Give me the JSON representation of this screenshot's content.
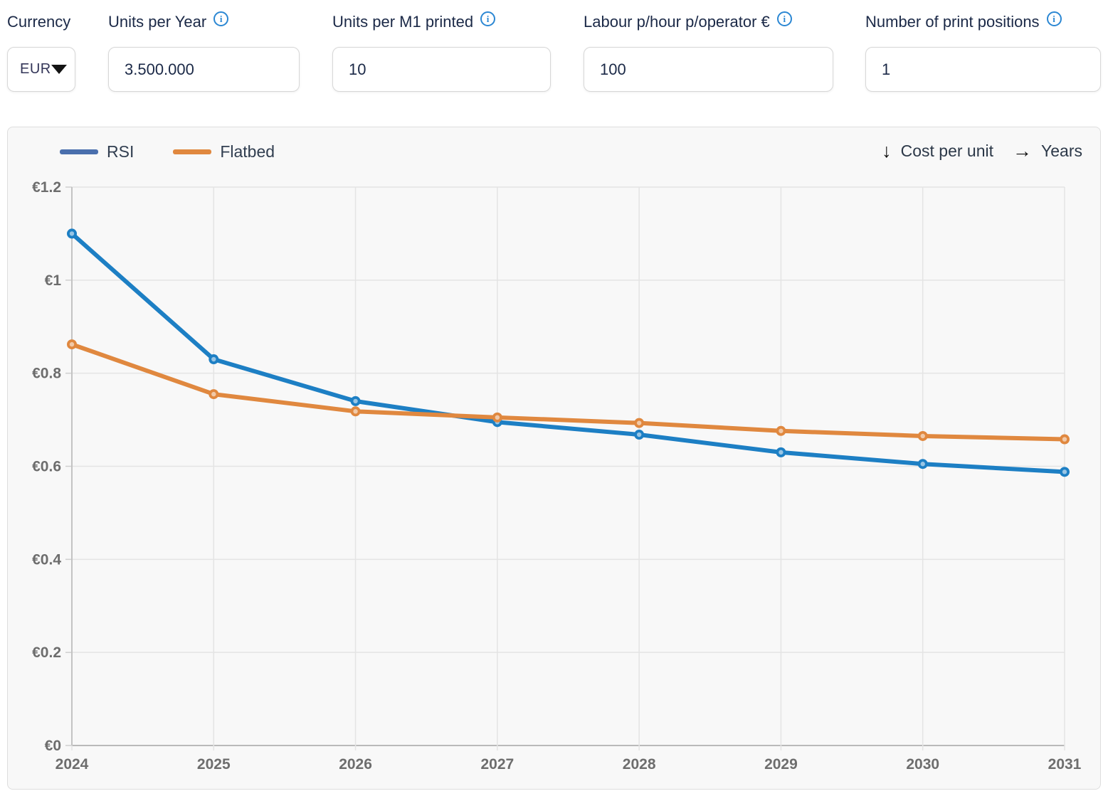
{
  "form": {
    "fields": [
      {
        "label": "Currency",
        "value": "EUR",
        "has_info": false
      },
      {
        "label": "Units per Year",
        "value": "3.500.000",
        "has_info": true
      },
      {
        "label": "Units per M1 printed",
        "value": "10",
        "has_info": true
      },
      {
        "label": "Labour p/hour p/operator €",
        "value": "100",
        "has_info": true
      },
      {
        "label": "Number of print positions",
        "value": "1",
        "has_info": true
      }
    ],
    "info_icon_glyph": "i",
    "info_icon_color": "#2b87d3"
  },
  "chart": {
    "legend": [
      {
        "label": "RSI",
        "swatch_color": "#4a6fad"
      },
      {
        "label": "Flatbed",
        "swatch_color": "#e0883f"
      }
    ],
    "axis_caption": {
      "down_arrow": "↓",
      "y_label": "Cost per unit",
      "right_arrow": "→",
      "x_label": "Years"
    }
  },
  "chart_data": {
    "type": "line",
    "x": [
      2024,
      2025,
      2026,
      2027,
      2028,
      2029,
      2030,
      2031
    ],
    "series": [
      {
        "name": "RSI",
        "color": "#1d7fc4",
        "values": [
          1.1,
          0.83,
          0.74,
          0.695,
          0.668,
          0.63,
          0.605,
          0.588
        ]
      },
      {
        "name": "Flatbed",
        "color": "#e0883f",
        "values": [
          0.862,
          0.755,
          0.718,
          0.705,
          0.693,
          0.676,
          0.665,
          0.658
        ]
      }
    ],
    "title": "",
    "xlabel": "Years",
    "ylabel": "Cost per unit",
    "ylim": [
      0,
      1.2
    ],
    "ytick_step": 0.2,
    "currency_prefix": "€",
    "grid": true,
    "legend_position": "top-left"
  }
}
